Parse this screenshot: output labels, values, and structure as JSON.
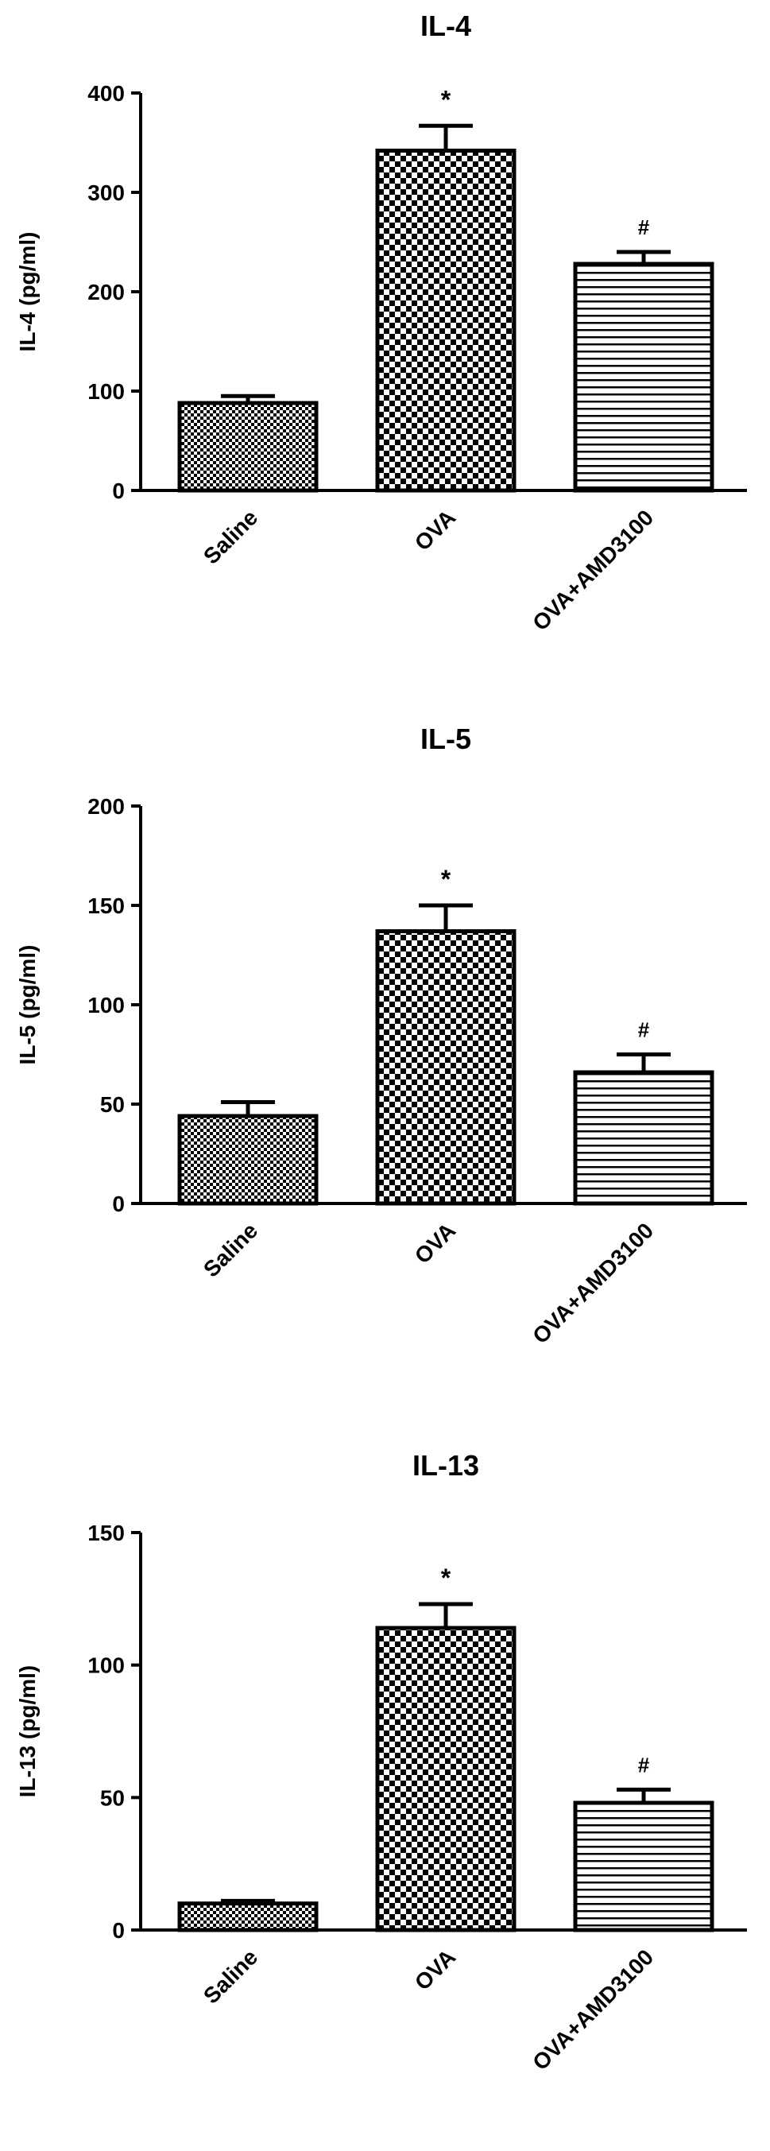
{
  "chart_data": [
    {
      "type": "bar",
      "title": "IL-4",
      "y_label": "IL-4 (pg/ml)",
      "categories": [
        "Saline",
        "OVA",
        "OVA+AMD3100"
      ],
      "values": [
        88,
        342,
        228
      ],
      "errors": [
        7,
        25,
        12
      ],
      "color": "#000000",
      "patterns": [
        "checker-fine",
        "checker",
        "hlines"
      ],
      "annotations": [
        {
          "category": "OVA",
          "text": "*"
        },
        {
          "category": "OVA+AMD3100",
          "text": "#"
        }
      ],
      "ylim": [
        0,
        400
      ],
      "yticks": [
        0,
        100,
        200,
        300,
        400
      ],
      "grid": false
    },
    {
      "type": "bar",
      "title": "IL-5",
      "y_label": "IL-5 (pg/ml)",
      "categories": [
        "Saline",
        "OVA",
        "OVA+AMD3100"
      ],
      "values": [
        44,
        137,
        66
      ],
      "errors": [
        7,
        13,
        9
      ],
      "color": "#000000",
      "patterns": [
        "checker-fine",
        "checker",
        "hlines"
      ],
      "annotations": [
        {
          "category": "OVA",
          "text": "*"
        },
        {
          "category": "OVA+AMD3100",
          "text": "#"
        }
      ],
      "ylim": [
        0,
        200
      ],
      "yticks": [
        0,
        50,
        100,
        150,
        200
      ],
      "grid": false
    },
    {
      "type": "bar",
      "title": "IL-13",
      "y_label": "IL-13 (pg/ml)",
      "categories": [
        "Saline",
        "OVA",
        "OVA+AMD3100"
      ],
      "values": [
        10,
        114,
        48
      ],
      "errors": [
        1,
        9,
        5
      ],
      "color": "#000000",
      "patterns": [
        "checker-fine",
        "checker",
        "hlines"
      ],
      "annotations": [
        {
          "category": "OVA",
          "text": "*"
        },
        {
          "category": "OVA+AMD3100",
          "text": "#"
        }
      ],
      "ylim": [
        0,
        150
      ],
      "yticks": [
        0,
        50,
        100,
        150
      ],
      "grid": false
    }
  ]
}
